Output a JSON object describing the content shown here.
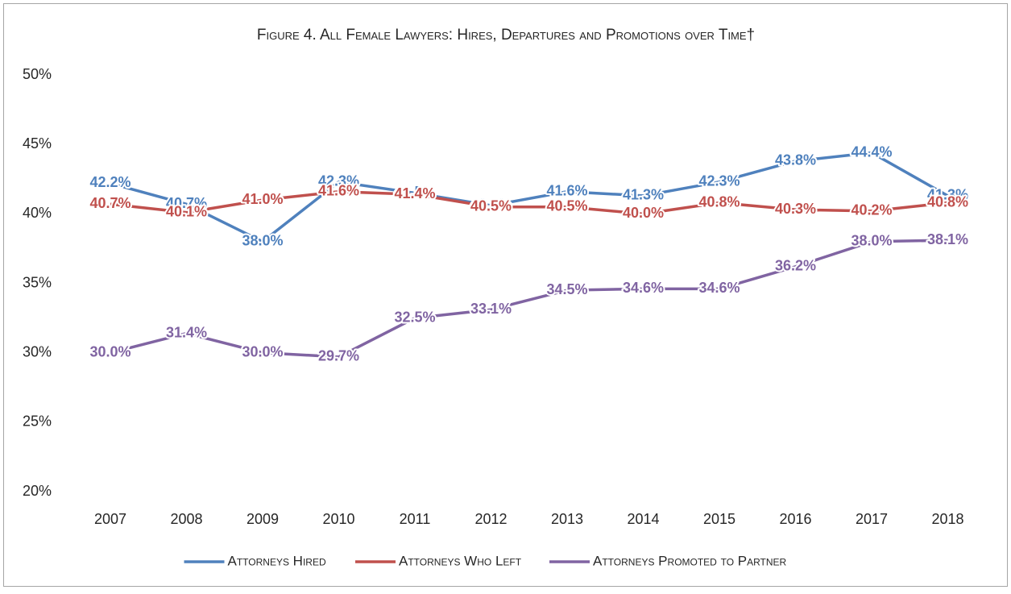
{
  "chart_data": {
    "type": "line",
    "title": "Figure 4. All Female Lawyers: Hires, Departures and Promotions over Time†",
    "categories": [
      "2007",
      "2008",
      "2009",
      "2010",
      "2011",
      "2012",
      "2013",
      "2014",
      "2015",
      "2016",
      "2017",
      "2018"
    ],
    "series": [
      {
        "name": "Attorneys Hired",
        "color": "#4f81bd",
        "values": [
          42.2,
          40.7,
          38.0,
          42.3,
          41.5,
          40.6,
          41.6,
          41.3,
          42.3,
          43.8,
          44.4,
          41.3
        ],
        "value_labels": [
          "42.2%",
          "40.7%",
          "38.0%",
          "42.3%",
          "41.5%",
          "40.6%",
          "41.6%",
          "41.3%",
          "42.3%",
          "43.8%",
          "44.4%",
          "41.3%"
        ]
      },
      {
        "name": "Attorneys Who Left",
        "color": "#c0504d",
        "values": [
          40.7,
          40.1,
          41.0,
          41.6,
          41.4,
          40.5,
          40.5,
          40.0,
          40.8,
          40.3,
          40.2,
          40.8
        ],
        "value_labels": [
          "40.7%",
          "40.1%",
          "41.0%",
          "41.6%",
          "41.4%",
          "40.5%",
          "40.5%",
          "40.0%",
          "40.8%",
          "40.3%",
          "40.2%",
          "40.8%"
        ]
      },
      {
        "name": "Attorneys Promoted to Partner",
        "color": "#8064a2",
        "values": [
          30.0,
          31.4,
          30.0,
          29.7,
          32.5,
          33.1,
          34.5,
          34.6,
          34.6,
          36.2,
          38.0,
          38.1
        ],
        "value_labels": [
          "30.0%",
          "31.4%",
          "30.0%",
          "29.7%",
          "32.5%",
          "33.1%",
          "34.5%",
          "34.6%",
          "34.6%",
          "36.2%",
          "38.0%",
          "38.1%"
        ]
      }
    ],
    "ylim": [
      20,
      50
    ],
    "yticks": [
      {
        "value": 20,
        "label": "20%"
      },
      {
        "value": 25,
        "label": "25%"
      },
      {
        "value": 30,
        "label": "30%"
      },
      {
        "value": 35,
        "label": "35%"
      },
      {
        "value": 40,
        "label": "40%"
      },
      {
        "value": 45,
        "label": "45%"
      },
      {
        "value": 50,
        "label": "50%"
      }
    ],
    "legend": "bottom"
  }
}
